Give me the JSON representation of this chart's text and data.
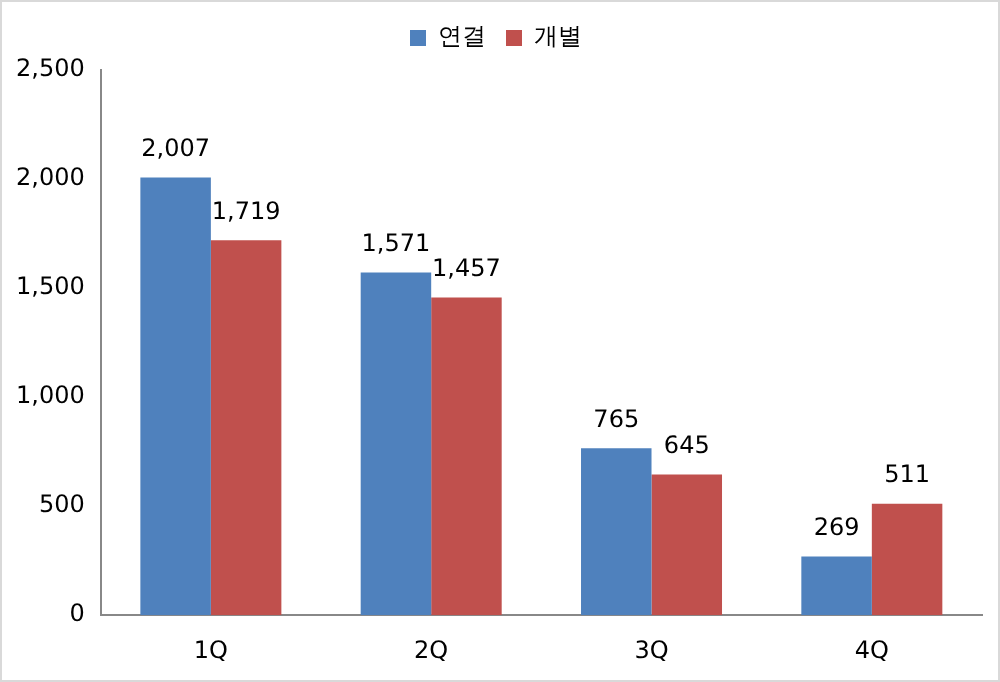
{
  "chart_data": {
    "type": "bar",
    "categories": [
      "1Q",
      "2Q",
      "3Q",
      "4Q"
    ],
    "series": [
      {
        "name": "연결",
        "color": "#4f81bd",
        "values": [
          2007,
          1571,
          765,
          269
        ],
        "value_labels": [
          "2,007",
          "1,571",
          "765",
          "269"
        ]
      },
      {
        "name": "개별",
        "color": "#c0504d",
        "values": [
          1719,
          1457,
          645,
          511
        ],
        "value_labels": [
          "1,719",
          "1,457",
          "645",
          "511"
        ]
      }
    ],
    "ylim": [
      0,
      2500
    ],
    "yticks": [
      {
        "value": 0,
        "label": "0"
      },
      {
        "value": 500,
        "label": "500"
      },
      {
        "value": 1000,
        "label": "1,000"
      },
      {
        "value": 1500,
        "label": "1,500"
      },
      {
        "value": 2000,
        "label": "2,000"
      },
      {
        "value": 2500,
        "label": "2,500"
      }
    ],
    "legend": "top"
  }
}
